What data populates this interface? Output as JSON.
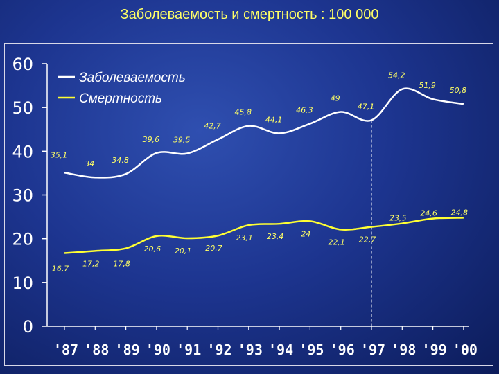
{
  "title": "Заболеваемость и смертность  : 100 000",
  "chart_data": {
    "type": "line",
    "categories": [
      "'87",
      "'88",
      "'89",
      "'90",
      "'91",
      "'92",
      "'93",
      "'94",
      "'95",
      "'96",
      "'97",
      "'98",
      "'99",
      "'00"
    ],
    "ylim": [
      0,
      60
    ],
    "yticks": [
      "0",
      "10",
      "20",
      "30",
      "40",
      "50",
      "60"
    ],
    "legend_position": "top-left",
    "colors": {
      "incidence": "#ffffff",
      "mortality": "#ffff33",
      "axis": "#ffffff",
      "labels": "#ffff66"
    },
    "series": [
      {
        "name": "Заболеваемость",
        "values": [
          35.1,
          34,
          34.8,
          39.6,
          39.5,
          42.7,
          45.8,
          44.1,
          46.3,
          49,
          47.1,
          54.2,
          51.9,
          50.8
        ],
        "labels": [
          "35,1",
          "34",
          "34,8",
          "39,6",
          "39,5",
          "42,7",
          "45,8",
          "44,1",
          "46,3",
          "49",
          "47,1",
          "54,2",
          "51,9",
          "50,8"
        ]
      },
      {
        "name": "Смертность",
        "values": [
          16.7,
          17.2,
          17.8,
          20.6,
          20.1,
          20.7,
          23.1,
          23.4,
          24,
          22.1,
          22.7,
          23.5,
          24.6,
          24.8
        ],
        "labels": [
          "16,7",
          "17,2",
          "17,8",
          "20,6",
          "20,1",
          "20,7",
          "23,1",
          "23,4",
          "24",
          "22,1",
          "22,7",
          "23,5",
          "24,6",
          "24,8"
        ]
      }
    ],
    "markers": [
      "'92",
      "'97"
    ]
  }
}
